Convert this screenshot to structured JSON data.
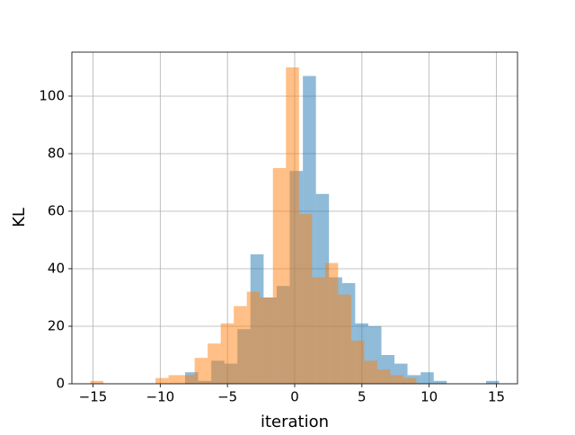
{
  "chart_data": {
    "type": "histogram",
    "xlabel": "iteration",
    "ylabel": "KL",
    "xlim": [
      -16.57,
      16.57
    ],
    "ylim": [
      0,
      115.3
    ],
    "xticks": [
      {
        "value": -15,
        "label": "−15"
      },
      {
        "value": -10,
        "label": "−10"
      },
      {
        "value": -5,
        "label": "−5"
      },
      0,
      5,
      10,
      15
    ],
    "yticks": [
      0,
      20,
      40,
      60,
      80,
      100
    ],
    "grid": true,
    "alpha": 0.5,
    "series": [
      {
        "color": "#1f77b4",
        "bins": [
          -8.15,
          -7.18,
          -6.2,
          -5.23,
          -4.26,
          -3.29,
          -2.31,
          -1.34,
          -0.37,
          0.61,
          1.58,
          2.55,
          3.53,
          4.5,
          5.47,
          6.45,
          7.42,
          8.39,
          9.37,
          10.34,
          11.31,
          12.28,
          13.26,
          14.23,
          15.2
        ],
        "values": [
          4,
          1,
          8,
          7,
          19,
          45,
          30,
          34,
          74,
          107,
          66,
          37,
          35,
          21,
          20,
          10,
          7,
          3,
          4,
          1,
          0,
          0,
          0,
          1
        ]
      },
      {
        "color": "#ff7f0e",
        "bins": [
          -15.2,
          -14.23,
          -13.26,
          -12.29,
          -11.32,
          -10.35,
          -9.38,
          -8.41,
          -7.44,
          -6.47,
          -5.5,
          -4.53,
          -3.56,
          -2.59,
          -1.62,
          -0.65,
          0.32,
          1.29,
          2.26,
          3.23,
          4.2,
          5.17,
          6.14,
          7.11,
          8.08,
          9.05
        ],
        "values": [
          1,
          0,
          0,
          0,
          0,
          2,
          3,
          3,
          9,
          14,
          21,
          27,
          32,
          30,
          75,
          110,
          59,
          37,
          42,
          31,
          15,
          8,
          5,
          3,
          2
        ]
      }
    ]
  }
}
